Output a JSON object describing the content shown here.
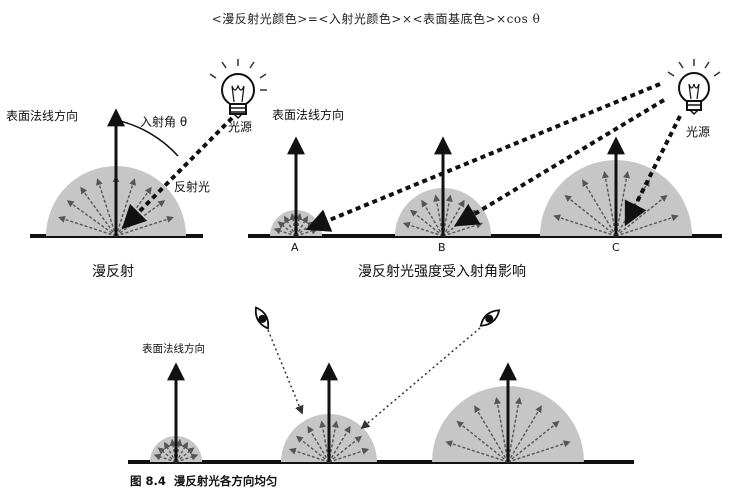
{
  "formula": {
    "text": "<漫反射光颜色>=<入射光颜色>×<表面基底色>×cos θ"
  },
  "labels": {
    "normal_top_left": "表面法线方向",
    "incidence_angle": "入射角 θ",
    "reflected_light": "反射光",
    "light_source_left": "光源",
    "diffuse_title": "漫反射",
    "normal_top_right": "表面法线方向",
    "light_source_right": "光源",
    "intensity_title": "漫反射光强度受入射角影响",
    "point_a": "A",
    "point_b": "B",
    "point_c": "C",
    "normal_bottom": "表面法线方向"
  },
  "caption": {
    "figure_number": "图 8.4",
    "title": "漫反射光各方向均匀"
  },
  "colors": {
    "dome": "#c6c6c6",
    "ink": "#111111",
    "arrow_gray": "#666666"
  },
  "icons": {
    "bulb": "light-bulb-icon",
    "eye": "eye-icon"
  }
}
